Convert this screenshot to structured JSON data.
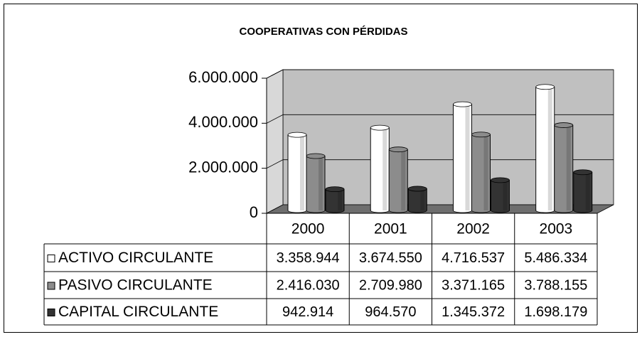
{
  "chart_data": {
    "type": "bar3d",
    "title": "COOPERATIVAS CON PÉRDIDAS",
    "categories": [
      "2000",
      "2001",
      "2002",
      "2003"
    ],
    "series": [
      {
        "name": "ACTIVO CIRCULANTE",
        "color": "#ffffff",
        "values": [
          3358944,
          3674550,
          4716537,
          5486334
        ],
        "value_labels": [
          "3.358.944",
          "3.674.550",
          "4.716.537",
          "5.486.334"
        ]
      },
      {
        "name": "PASIVO CIRCULANTE",
        "color": "#8c8c8c",
        "values": [
          2416030,
          2709980,
          3371165,
          3788155
        ],
        "value_labels": [
          "2.416.030",
          "2.709.980",
          "3.371.165",
          "3.788.155"
        ]
      },
      {
        "name": "CAPITAL CIRCULANTE",
        "color": "#333333",
        "values": [
          942914,
          964570,
          1345372,
          1698179
        ],
        "value_labels": [
          "942.914",
          "964.570",
          "1.345.372",
          "1.698.179"
        ]
      }
    ],
    "ylim": [
      0,
      6000000
    ],
    "yticks": [
      0,
      {
        "value": 2000000,
        "label": "2.000.000"
      },
      {
        "value": 4000000,
        "label": "4.000.000"
      },
      {
        "value": 6000000,
        "label": "6.000.000"
      }
    ],
    "grid": true
  }
}
